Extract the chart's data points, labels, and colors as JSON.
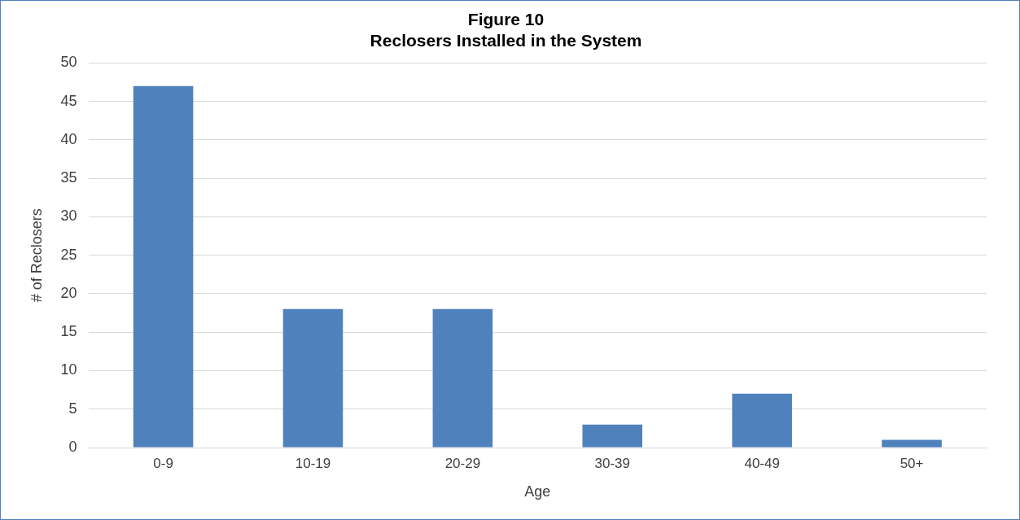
{
  "chart_data": {
    "type": "bar",
    "title": "Figure 10",
    "subtitle": "Reclosers Installed in the System",
    "xlabel": "Age",
    "ylabel": "# of Reclosers",
    "categories": [
      "0-9",
      "10-19",
      "20-29",
      "30-39",
      "40-49",
      "50+"
    ],
    "values": [
      47,
      18,
      18,
      3,
      7,
      1
    ],
    "color": "#4f81bd",
    "ylim": [
      0,
      50
    ],
    "yticks": [
      0,
      5,
      10,
      15,
      20,
      25,
      30,
      35,
      40,
      45,
      50
    ],
    "grid": "y",
    "legend": false
  }
}
